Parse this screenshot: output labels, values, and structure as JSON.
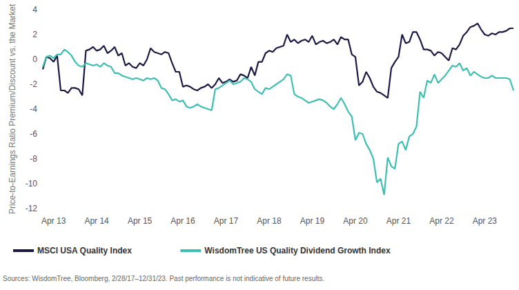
{
  "chart_data": {
    "type": "line",
    "y_label": "Price-to-Earnings Ratio Premium/Discount vs. the Market",
    "source": "Sources: WisdomTree, Bloomberg, 2/28/17–12/31/23. Past performance is not indicative of future results.",
    "categories": [
      null,
      null,
      null,
      "Apr 13",
      null,
      null,
      null,
      null,
      null,
      null,
      null,
      null,
      null,
      null,
      null,
      "Apr 14",
      null,
      null,
      null,
      null,
      null,
      null,
      null,
      null,
      null,
      null,
      null,
      "Apr 15",
      null,
      null,
      null,
      null,
      null,
      null,
      null,
      null,
      null,
      null,
      null,
      "Apr 16",
      null,
      null,
      null,
      null,
      null,
      null,
      null,
      null,
      null,
      null,
      null,
      "Apr 17",
      null,
      null,
      null,
      null,
      null,
      null,
      null,
      null,
      null,
      null,
      null,
      "Apr 18",
      null,
      null,
      null,
      null,
      null,
      null,
      null,
      null,
      null,
      null,
      null,
      "Apr 19",
      null,
      null,
      null,
      null,
      null,
      null,
      null,
      null,
      null,
      null,
      null,
      "Apr 20",
      null,
      null,
      null,
      null,
      null,
      null,
      null,
      null,
      null,
      null,
      null,
      "Apr 21",
      null,
      null,
      null,
      null,
      null,
      null,
      null,
      null,
      null,
      null,
      null,
      "Apr 22",
      null,
      null,
      null,
      null,
      null,
      null,
      null,
      null,
      null,
      null,
      null,
      "Apr 23",
      null,
      null,
      null,
      null,
      null,
      null,
      null,
      null
    ],
    "series": [
      {
        "name": "MSCI USA Quality Index",
        "color": "#1c1846",
        "values": [
          -0.8,
          0.2,
          0.1,
          -0.2,
          0.3,
          -2.5,
          -2.5,
          -2.7,
          -2.3,
          -2.3,
          -2.4,
          -2.9,
          0.7,
          0.8,
          1.0,
          0.7,
          0.8,
          1.1,
          0.5,
          0.7,
          1.0,
          0.3,
          0.5,
          -0.5,
          -0.3,
          -0.6,
          -0.7,
          -0.3,
          -0.5,
          0.0,
          0.9,
          0.6,
          0.5,
          0.4,
          0.6,
          0.5,
          -0.3,
          -1.0,
          -1.0,
          -2.2,
          -2.1,
          -2.2,
          -2.4,
          -2.5,
          -2.3,
          -2.2,
          -2.0,
          -2.3,
          -2.0,
          -1.5,
          -1.9,
          -1.8,
          -1.6,
          -1.8,
          -1.7,
          -1.2,
          -1.3,
          -1.5,
          -0.6,
          -1.3,
          -0.2,
          -0.2,
          0.5,
          0.7,
          0.6,
          0.9,
          1.0,
          1.1,
          2.0,
          1.4,
          1.6,
          1.3,
          1.5,
          1.6,
          1.4,
          1.9,
          1.2,
          1.4,
          1.5,
          1.3,
          1.4,
          1.6,
          1.2,
          1.8,
          1.6,
          1.6,
          0.4,
          0.2,
          -2.1,
          -1.8,
          -1.0,
          -1.5,
          -2.2,
          -2.6,
          -2.7,
          -2.9,
          -3.1,
          -0.7,
          -0.2,
          0.2,
          2.0,
          1.3,
          1.4,
          2.2,
          2.2,
          1.6,
          0.8,
          0.8,
          0.7,
          0.3,
          0.6,
          0.5,
          0.2,
          -0.1,
          0.9,
          0.8,
          1.2,
          1.9,
          2.2,
          2.6,
          2.7,
          2.9,
          2.4,
          2.0,
          1.9,
          2.1,
          2.0,
          2.2,
          2.2,
          2.3,
          2.5,
          2.5
        ]
      },
      {
        "name": "WisdomTree US Quality Dividend Growth Index",
        "color": "#3dbfb2",
        "values": [
          -0.6,
          0.2,
          0.3,
          0.1,
          0.4,
          0.4,
          0.8,
          0.6,
          0.3,
          -0.2,
          -0.5,
          -0.6,
          -0.3,
          -0.4,
          -0.5,
          -0.4,
          -0.6,
          -0.3,
          -0.5,
          -0.6,
          -1.1,
          -1.1,
          -1.3,
          -1.4,
          -1.5,
          -1.6,
          -1.5,
          -1.6,
          -1.7,
          -1.5,
          -1.6,
          -1.5,
          -1.7,
          -2.3,
          -2.4,
          -2.8,
          -3.3,
          -3.2,
          -3.4,
          -3.3,
          -3.8,
          -3.9,
          -3.8,
          -3.6,
          -3.8,
          -3.9,
          -4.0,
          -4.1,
          -2.4,
          -2.3,
          -2.1,
          -1.9,
          -1.7,
          -2.0,
          -1.9,
          -1.8,
          -1.5,
          -1.6,
          -1.8,
          -2.4,
          -2.6,
          -2.8,
          -2.3,
          -2.4,
          -2.2,
          -2.0,
          -1.8,
          -1.6,
          -1.2,
          -1.3,
          -2.8,
          -3.0,
          -3.1,
          -3.3,
          -3.5,
          -3.4,
          -3.3,
          -3.2,
          -3.3,
          -3.5,
          -3.8,
          -4.0,
          -3.6,
          -3.1,
          -3.6,
          -4.2,
          -4.6,
          -6.5,
          -5.9,
          -6.0,
          -6.8,
          -7.3,
          -8.0,
          -9.9,
          -9.6,
          -10.9,
          -7.9,
          -8.6,
          -8.8,
          -6.8,
          -6.6,
          -7.3,
          -6.2,
          -6.0,
          -5.4,
          -2.6,
          -3.1,
          -1.7,
          -1.9,
          -1.2,
          -1.9,
          -1.6,
          -1.3,
          -0.9,
          -0.5,
          -0.6,
          -0.3,
          -0.9,
          -0.7,
          -1.3,
          -1.0,
          -1.2,
          -1.4,
          -1.5,
          -1.5,
          -1.3,
          -1.5,
          -1.5,
          -1.5,
          -1.5,
          -1.6,
          -2.5
        ]
      }
    ],
    "ylim": [
      -12,
      4
    ],
    "yticks": [
      -12,
      -10,
      -8,
      -6,
      -4,
      -2,
      0,
      2,
      4
    ],
    "grid": false,
    "legend": "bottom-left"
  }
}
